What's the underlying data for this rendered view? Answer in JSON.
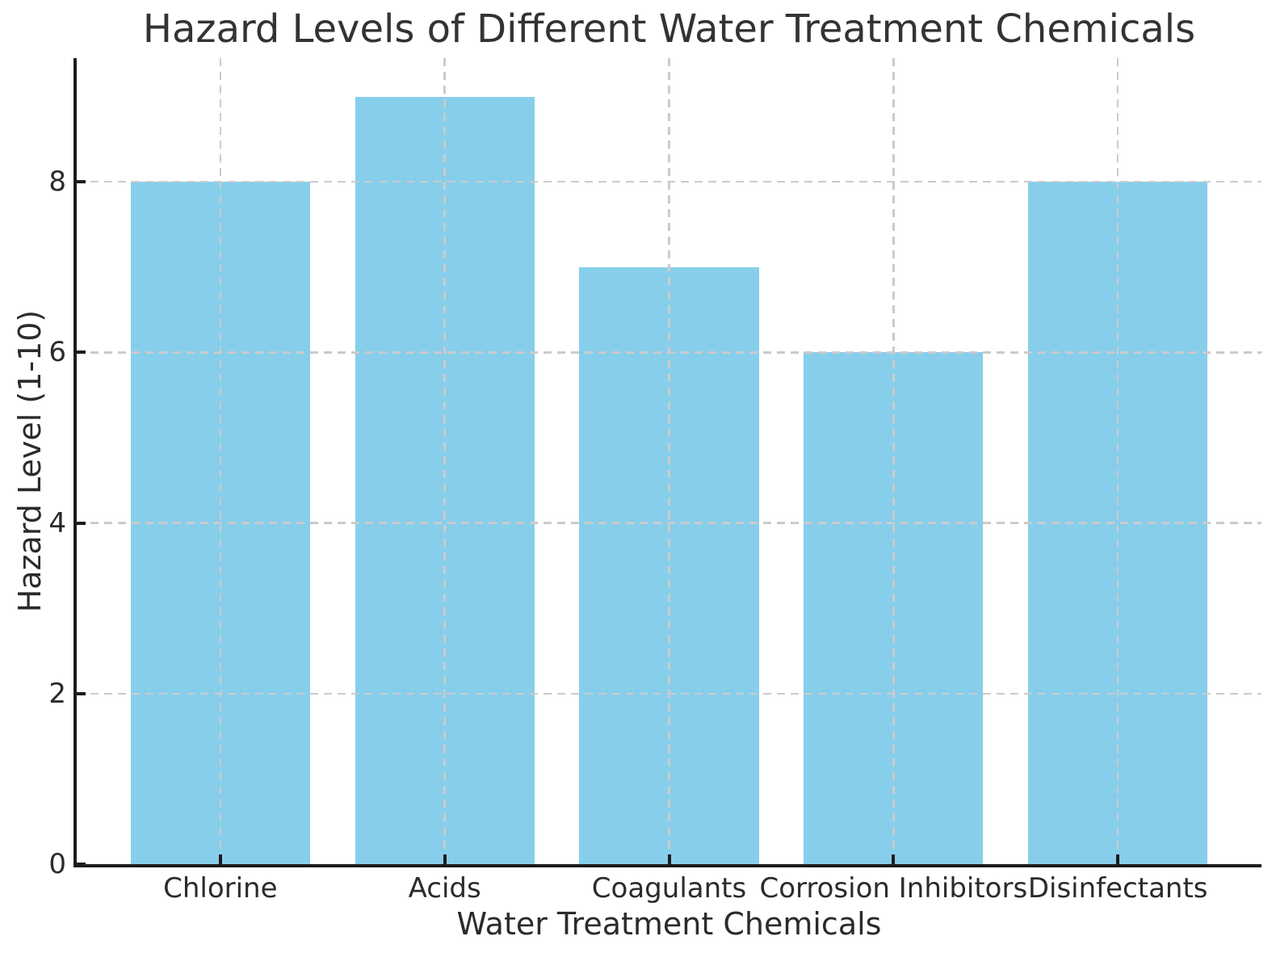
{
  "chart_data": {
    "type": "bar",
    "title": "Hazard Levels of Different Water Treatment Chemicals",
    "xlabel": "Water Treatment Chemicals",
    "ylabel": "Hazard Level (1-10)",
    "categories": [
      "Chlorine",
      "Acids",
      "Coagulants",
      "Corrosion Inhibitors",
      "Disinfectants"
    ],
    "values": [
      8,
      9,
      7,
      6,
      8
    ],
    "yticks": [
      0,
      2,
      4,
      6,
      8
    ],
    "ylim": [
      0,
      9.45
    ],
    "xlim": [
      -0.64,
      4.64
    ],
    "bar_width": 0.8,
    "bar_color": "#87CEEB",
    "grid_color": "#cbcbcb",
    "grid_style": "dashed-both-axes-over-bars",
    "spine_color": "#1c1c1c",
    "text_color": "#2b2b2b",
    "tick_direction": "in",
    "legend": "none",
    "spines": "left-bottom-only"
  }
}
